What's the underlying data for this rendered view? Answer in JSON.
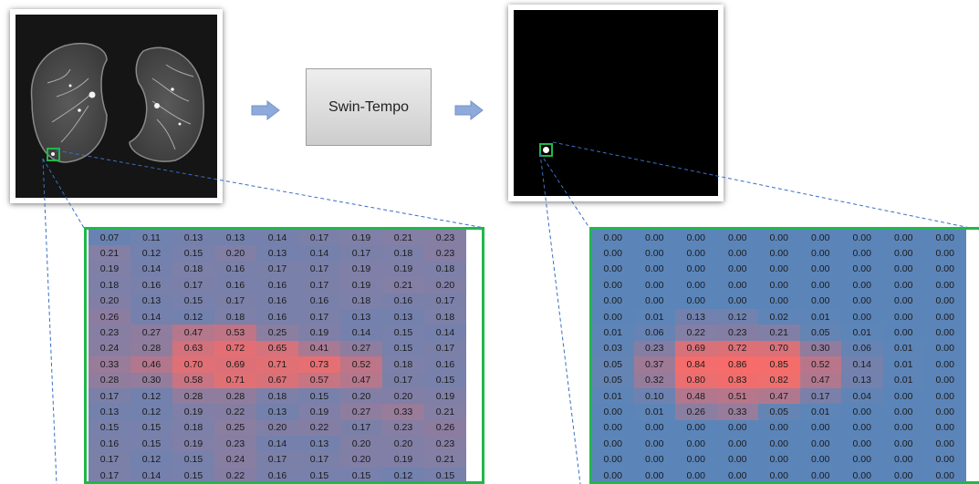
{
  "model": {
    "label": "Swin-Tempo"
  },
  "colors": {
    "box": "#1fb84a",
    "arrow": "#8eaadb",
    "dash": "#3a6fc4",
    "low": "#5b85b9",
    "high": "#ff6b66"
  },
  "input_grid": [
    [
      "0.07",
      "0.11",
      "0.13",
      "0.13",
      "0.14",
      "0.17",
      "0.19",
      "0.21",
      "0.23"
    ],
    [
      "0.21",
      "0.12",
      "0.15",
      "0.20",
      "0.13",
      "0.14",
      "0.17",
      "0.18",
      "0.23"
    ],
    [
      "0.19",
      "0.14",
      "0.18",
      "0.16",
      "0.17",
      "0.17",
      "0.19",
      "0.19",
      "0.18"
    ],
    [
      "0.18",
      "0.16",
      "0.17",
      "0.16",
      "0.16",
      "0.17",
      "0.19",
      "0.21",
      "0.20"
    ],
    [
      "0.20",
      "0.13",
      "0.15",
      "0.17",
      "0.16",
      "0.16",
      "0.18",
      "0.16",
      "0.17"
    ],
    [
      "0.26",
      "0.14",
      "0.12",
      "0.18",
      "0.16",
      "0.17",
      "0.13",
      "0.13",
      "0.18"
    ],
    [
      "0.23",
      "0.27",
      "0.47",
      "0.53",
      "0.25",
      "0.19",
      "0.14",
      "0.15",
      "0.14"
    ],
    [
      "0.24",
      "0.28",
      "0.63",
      "0.72",
      "0.65",
      "0.41",
      "0.27",
      "0.15",
      "0.17"
    ],
    [
      "0.33",
      "0.46",
      "0.70",
      "0.69",
      "0.71",
      "0.73",
      "0.52",
      "0.18",
      "0.16"
    ],
    [
      "0.28",
      "0.30",
      "0.58",
      "0.71",
      "0.67",
      "0.57",
      "0.47",
      "0.17",
      "0.15"
    ],
    [
      "0.17",
      "0.12",
      "0.28",
      "0.28",
      "0.18",
      "0.15",
      "0.20",
      "0.20",
      "0.19"
    ],
    [
      "0.13",
      "0.12",
      "0.19",
      "0.22",
      "0.13",
      "0.19",
      "0.27",
      "0.33",
      "0.21"
    ],
    [
      "0.15",
      "0.15",
      "0.18",
      "0.25",
      "0.20",
      "0.22",
      "0.17",
      "0.23",
      "0.26"
    ],
    [
      "0.16",
      "0.15",
      "0.19",
      "0.23",
      "0.14",
      "0.13",
      "0.20",
      "0.20",
      "0.23"
    ],
    [
      "0.17",
      "0.12",
      "0.15",
      "0.24",
      "0.17",
      "0.17",
      "0.20",
      "0.19",
      "0.21"
    ],
    [
      "0.17",
      "0.14",
      "0.15",
      "0.22",
      "0.16",
      "0.15",
      "0.15",
      "0.12",
      "0.15"
    ]
  ],
  "output_grid": [
    [
      "0.00",
      "0.00",
      "0.00",
      "0.00",
      "0.00",
      "0.00",
      "0.00",
      "0.00",
      "0.00"
    ],
    [
      "0.00",
      "0.00",
      "0.00",
      "0.00",
      "0.00",
      "0.00",
      "0.00",
      "0.00",
      "0.00"
    ],
    [
      "0.00",
      "0.00",
      "0.00",
      "0.00",
      "0.00",
      "0.00",
      "0.00",
      "0.00",
      "0.00"
    ],
    [
      "0.00",
      "0.00",
      "0.00",
      "0.00",
      "0.00",
      "0.00",
      "0.00",
      "0.00",
      "0.00"
    ],
    [
      "0.00",
      "0.00",
      "0.00",
      "0.00",
      "0.00",
      "0.00",
      "0.00",
      "0.00",
      "0.00"
    ],
    [
      "0.00",
      "0.01",
      "0.13",
      "0.12",
      "0.02",
      "0.01",
      "0.00",
      "0.00",
      "0.00"
    ],
    [
      "0.01",
      "0.06",
      "0.22",
      "0.23",
      "0.21",
      "0.05",
      "0.01",
      "0.00",
      "0.00"
    ],
    [
      "0.03",
      "0.23",
      "0.69",
      "0.72",
      "0.70",
      "0.30",
      "0.06",
      "0.01",
      "0.00"
    ],
    [
      "0.05",
      "0.37",
      "0.84",
      "0.86",
      "0.85",
      "0.52",
      "0.14",
      "0.01",
      "0.00"
    ],
    [
      "0.05",
      "0.32",
      "0.80",
      "0.83",
      "0.82",
      "0.47",
      "0.13",
      "0.01",
      "0.00"
    ],
    [
      "0.01",
      "0.10",
      "0.48",
      "0.51",
      "0.47",
      "0.17",
      "0.04",
      "0.00",
      "0.00"
    ],
    [
      "0.00",
      "0.01",
      "0.26",
      "0.33",
      "0.05",
      "0.01",
      "0.00",
      "0.00",
      "0.00"
    ],
    [
      "0.00",
      "0.00",
      "0.00",
      "0.00",
      "0.00",
      "0.00",
      "0.00",
      "0.00",
      "0.00"
    ],
    [
      "0.00",
      "0.00",
      "0.00",
      "0.00",
      "0.00",
      "0.00",
      "0.00",
      "0.00",
      "0.00"
    ],
    [
      "0.00",
      "0.00",
      "0.00",
      "0.00",
      "0.00",
      "0.00",
      "0.00",
      "0.00",
      "0.00"
    ],
    [
      "0.00",
      "0.00",
      "0.00",
      "0.00",
      "0.00",
      "0.00",
      "0.00",
      "0.00",
      "0.00"
    ]
  ]
}
